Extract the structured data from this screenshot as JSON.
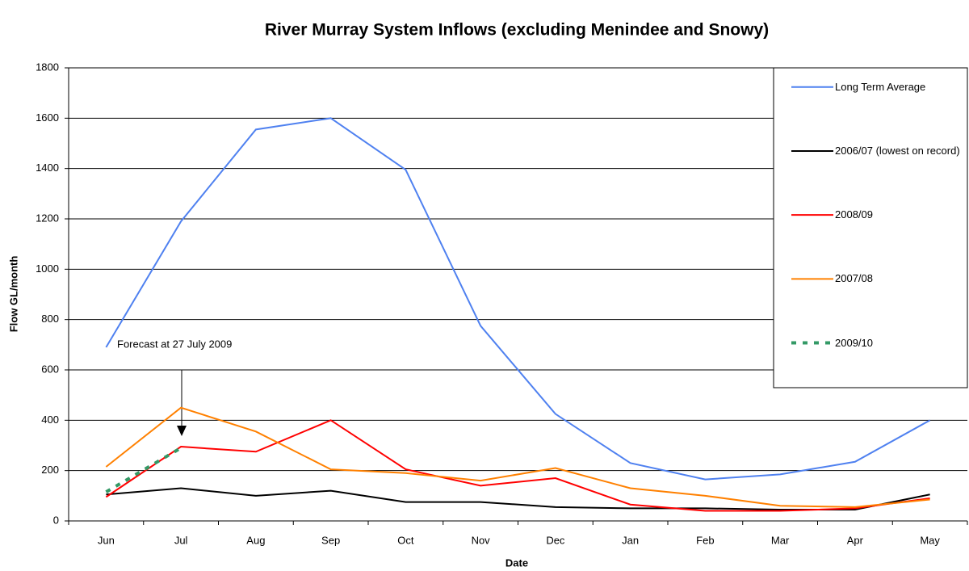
{
  "chart_data": {
    "type": "line",
    "title": "River Murray System Inflows (excluding Menindee and Snowy)",
    "x_label": "Date",
    "y_label": "Flow GL/month",
    "categories": [
      "Jun",
      "Jul",
      "Aug",
      "Sep",
      "Oct",
      "Nov",
      "Dec",
      "Jan",
      "Feb",
      "Mar",
      "Apr",
      "May"
    ],
    "series": [
      {
        "name": "Long Term Average",
        "color": "#4f81f0",
        "values": [
          690,
          1190,
          1555,
          1600,
          1395,
          775,
          425,
          230,
          165,
          185,
          235,
          400
        ]
      },
      {
        "name": "2006/07 (lowest on record)",
        "color": "#000000",
        "values": [
          105,
          130,
          100,
          120,
          75,
          75,
          55,
          50,
          50,
          45,
          45,
          105
        ]
      },
      {
        "name": "2008/09",
        "color": "#ff0000",
        "values": [
          95,
          295,
          275,
          400,
          205,
          140,
          170,
          65,
          40,
          40,
          50,
          90
        ]
      },
      {
        "name": "2007/08",
        "color": "#ff8000",
        "values": [
          215,
          450,
          355,
          205,
          190,
          160,
          210,
          130,
          100,
          60,
          55,
          85
        ]
      },
      {
        "name": "2009/10",
        "color": "#339966",
        "dashed": true,
        "values": [
          115,
          290,
          null,
          null,
          null,
          null,
          null,
          null,
          null,
          null,
          null,
          null
        ]
      }
    ],
    "annotation": "Forecast at 27 July 2009",
    "ylim": [
      0,
      1800
    ],
    "yticks": [
      0,
      200,
      400,
      600,
      800,
      1000,
      1200,
      1400,
      1600,
      1800
    ],
    "grid": true,
    "legend": "right"
  }
}
